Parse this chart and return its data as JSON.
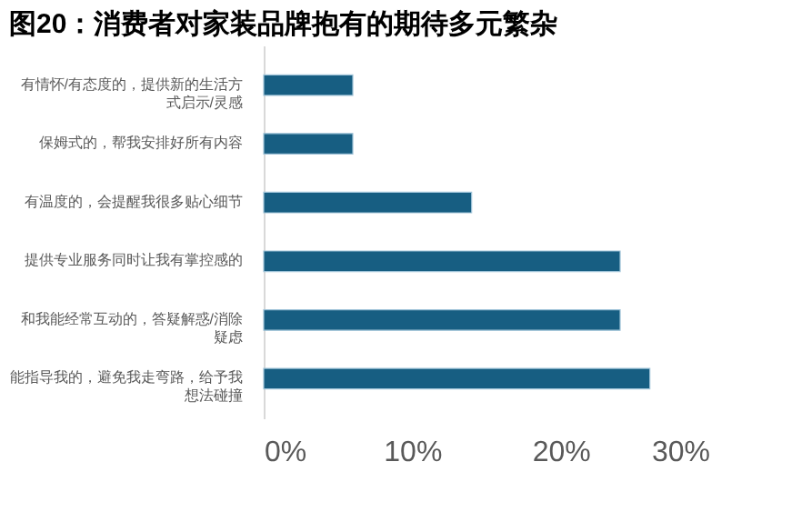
{
  "chart_data": {
    "type": "bar",
    "orientation": "horizontal",
    "title": "图20：消费者对家装品牌抱有的期待多元繁杂",
    "categories": [
      "有情怀/有态度的，提供新的生活方式启示/灵感",
      "保姆式的，帮我安排好所有内容",
      "有温度的，会提醒我很多贴心细节",
      "提供专业服务同时让我有掌控感的",
      "和我能经常互动的，答疑解惑/消除疑虑",
      "能指导我的，避免我走弯路，给予我想法碰撞"
    ],
    "values": [
      6,
      6,
      14,
      24,
      24,
      26
    ],
    "color": "#175e82",
    "xlim": [
      0,
      30
    ],
    "xticks": [
      {
        "value": 0,
        "label": "0%"
      },
      {
        "value": 10,
        "label": "10%"
      },
      {
        "value": 20,
        "label": "20%"
      },
      {
        "value": 30,
        "label": "30%"
      }
    ],
    "grid": false
  }
}
